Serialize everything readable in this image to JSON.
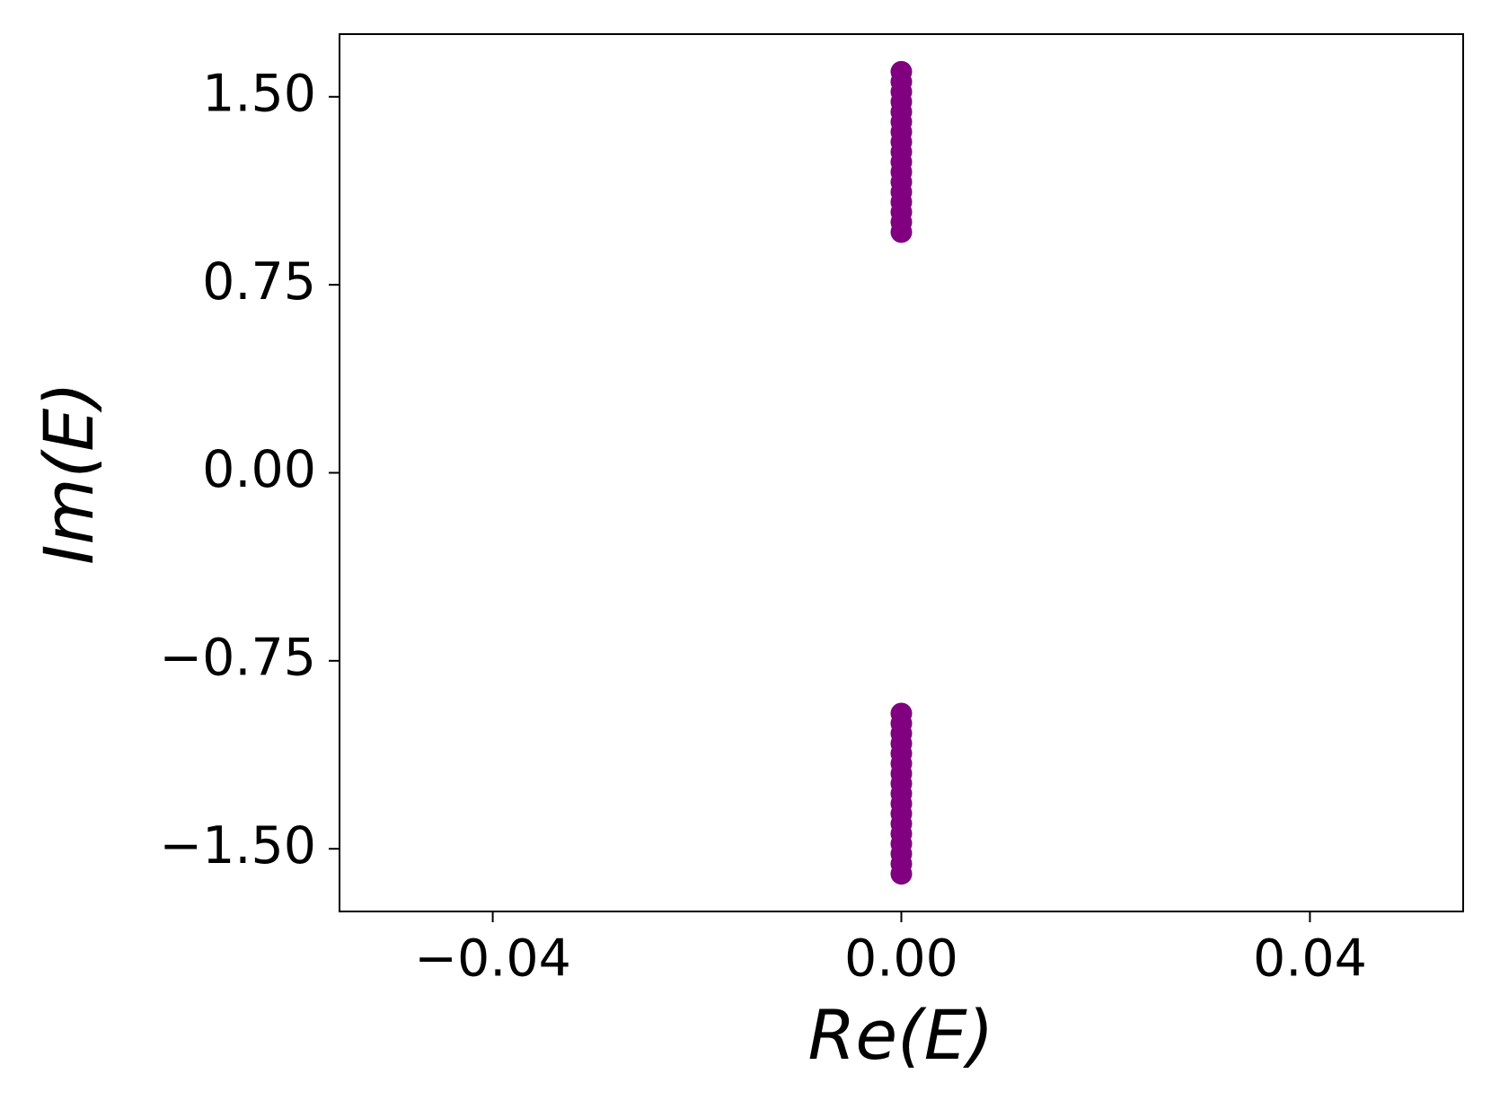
{
  "chart_data": {
    "type": "scatter",
    "x_label": "Re(E)",
    "y_label": "Im(E)",
    "x": [
      0,
      0,
      0,
      0,
      0,
      0,
      0,
      0,
      0,
      0,
      0,
      0,
      0,
      0,
      0,
      0,
      0,
      0,
      0,
      0,
      0,
      0,
      0,
      0,
      0,
      0,
      0,
      0,
      0,
      0,
      0,
      0,
      0,
      0
    ],
    "values": [
      0.96,
      1.0,
      1.04,
      1.08,
      1.12,
      1.16,
      1.2,
      1.24,
      1.28,
      1.32,
      1.36,
      1.4,
      1.44,
      1.48,
      1.52,
      1.56,
      1.6,
      -0.96,
      -1.0,
      -1.04,
      -1.08,
      -1.12,
      -1.16,
      -1.2,
      -1.24,
      -1.28,
      -1.32,
      -1.36,
      -1.4,
      -1.44,
      -1.48,
      -1.52,
      -1.56,
      -1.6
    ],
    "color": "#800080",
    "xlim": [
      -0.055,
      0.055
    ],
    "xticks": [
      {
        "value": -0.04,
        "label": "−0.04"
      },
      {
        "value": 0,
        "label": "0.00"
      },
      {
        "value": 0.04,
        "label": "0.04"
      }
    ],
    "ylim": [
      -1.75,
      1.75
    ],
    "yticks": [
      {
        "value": -1.5,
        "label": "−1.50"
      },
      {
        "value": -0.75,
        "label": "−0.75"
      },
      {
        "value": 0,
        "label": "0.00"
      },
      {
        "value": 0.75,
        "label": "0.75"
      },
      {
        "value": 1.5,
        "label": "1.50"
      }
    ],
    "grid": false
  }
}
